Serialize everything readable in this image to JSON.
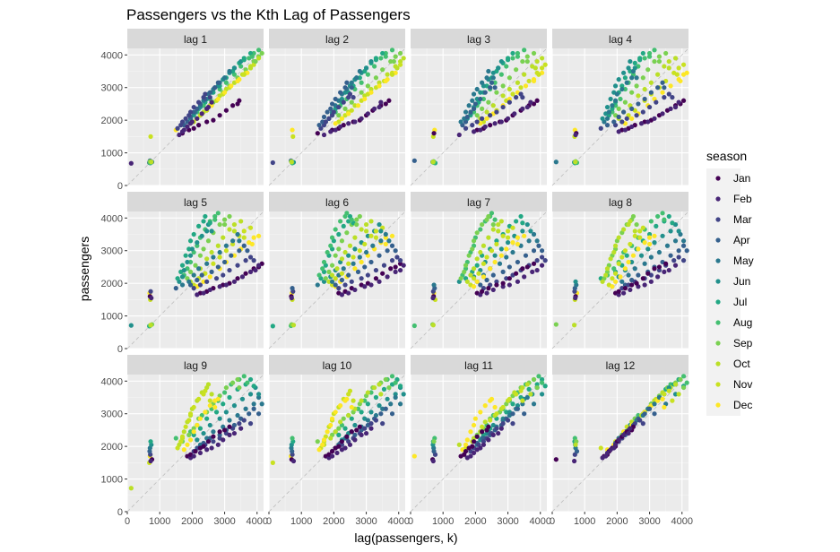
{
  "chart_data": {
    "type": "scatter",
    "title": "Passengers vs the Kth Lag of Passengers",
    "xlabel": "lag(passengers, k)",
    "ylabel": "passengers",
    "xlim": [
      0,
      4200
    ],
    "ylim": [
      0,
      4200
    ],
    "xticks": [
      0,
      1000,
      2000,
      3000,
      4000
    ],
    "yticks": [
      0,
      1000,
      2000,
      3000,
      4000
    ],
    "grid": true,
    "reference_line": "y = x",
    "facets": [
      "lag 1",
      "lag 2",
      "lag 3",
      "lag 4",
      "lag 5",
      "lag 6",
      "lag 7",
      "lag 8",
      "lag 9",
      "lag 10",
      "lag 11",
      "lag 12"
    ],
    "legend": {
      "title": "season",
      "position": "right",
      "entries": [
        "Jan",
        "Feb",
        "Mar",
        "Apr",
        "May",
        "Jun",
        "Jul",
        "Aug",
        "Sep",
        "Oct",
        "Nov",
        "Dec"
      ],
      "colors": [
        "#440154",
        "#482576",
        "#414487",
        "#35608D",
        "#2A788E",
        "#21908C",
        "#22A884",
        "#43BF71",
        "#7AD151",
        "#BBDF27",
        "#C9E120",
        "#FDE725"
      ]
    },
    "series_monthly": [
      {
        "year": 1,
        "values": [
          120,
          680,
          700,
          760,
          720,
          710,
          690,
          700,
          740,
          720,
          1500,
          1700
        ]
      },
      {
        "year": 2,
        "values": [
          1600,
          1550,
          1750,
          1850,
          1950,
          2050,
          2150,
          2250,
          2150,
          2050,
          1950,
          1900
        ]
      },
      {
        "year": 3,
        "values": [
          1700,
          1650,
          1850,
          1950,
          2050,
          2200,
          2350,
          2450,
          2350,
          2250,
          2150,
          2050
        ]
      },
      {
        "year": 4,
        "values": [
          1750,
          1700,
          1950,
          2100,
          2250,
          2400,
          2550,
          2650,
          2550,
          2450,
          2300,
          2200
        ]
      },
      {
        "year": 5,
        "values": [
          1850,
          1800,
          2050,
          2250,
          2450,
          2650,
          2850,
          2950,
          2850,
          2750,
          2600,
          2450
        ]
      },
      {
        "year": 6,
        "values": [
          1950,
          1900,
          2150,
          2350,
          2600,
          2850,
          3050,
          3150,
          3050,
          2950,
          2800,
          2650
        ]
      },
      {
        "year": 7,
        "values": [
          2000,
          1950,
          2250,
          2500,
          2800,
          3050,
          3300,
          3400,
          3300,
          3150,
          3000,
          2850
        ]
      },
      {
        "year": 8,
        "values": [
          2150,
          2050,
          2400,
          2650,
          2950,
          3250,
          3500,
          3650,
          3550,
          3400,
          3200,
          3050
        ]
      },
      {
        "year": 9,
        "values": [
          2300,
          2200,
          2550,
          2850,
          3150,
          3450,
          3750,
          3900,
          3800,
          3650,
          3450,
          3250
        ]
      },
      {
        "year": 10,
        "values": [
          2450,
          2350,
          2700,
          3000,
          3300,
          3600,
          3900,
          4050,
          3950,
          3800,
          3600,
          3400
        ]
      },
      {
        "year": 11,
        "values": [
          2500,
          2400,
          2800,
          3150,
          3500,
          3800,
          4050,
          4150,
          4050,
          3900,
          3700,
          3450
        ]
      },
      {
        "year": 12,
        "values": [
          2600,
          2550,
          2700,
          3000,
          3300,
          3600,
          3850,
          3950,
          3800,
          3600,
          3400,
          3200
        ]
      }
    ]
  }
}
